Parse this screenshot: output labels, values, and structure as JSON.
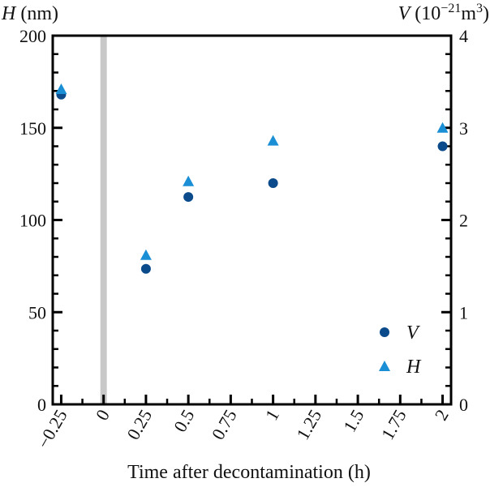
{
  "chart_data": {
    "type": "scatter",
    "xlabel": "Time after decontamination (h)",
    "ylabel_left": {
      "symbol": "H",
      "unit": "(nm)"
    },
    "ylabel_right": {
      "symbol": "V",
      "unit_prefix": "(10",
      "unit_exp": "−21",
      "unit_mid": "m",
      "unit_exp2": "3",
      "unit_suffix": ")"
    },
    "xlim": [
      -0.3,
      2.05
    ],
    "ylim_left": [
      0,
      200
    ],
    "ylim_right": [
      0,
      4
    ],
    "x_ticks_major": [
      -0.25,
      0,
      0.25,
      0.5,
      0.75,
      1,
      1.25,
      1.5,
      1.75,
      2
    ],
    "x_tick_labels": [
      "−0.25",
      "0",
      "0.25",
      "0.5",
      "0.75",
      "1",
      "1.25",
      "1.5",
      "1.75",
      "2"
    ],
    "y_left_ticks": [
      0,
      50,
      100,
      150,
      200
    ],
    "y_left_tick_labels": [
      "0",
      "50",
      "100",
      "150",
      "200"
    ],
    "y_right_ticks": [
      0,
      1,
      2,
      3,
      4
    ],
    "y_right_tick_labels": [
      "0",
      "1",
      "2",
      "3",
      "4"
    ],
    "vertical_band_x": 0,
    "series": [
      {
        "name": "V",
        "axis": "right",
        "marker": "circle",
        "color": "#0b4a8b",
        "points": [
          {
            "x": -0.25,
            "y": 3.36
          },
          {
            "x": 0.25,
            "y": 1.47
          },
          {
            "x": 0.5,
            "y": 2.25
          },
          {
            "x": 1,
            "y": 2.4
          },
          {
            "x": 2,
            "y": 2.8
          }
        ]
      },
      {
        "name": "H",
        "axis": "left",
        "marker": "triangle",
        "color": "#1a8fd6",
        "points": [
          {
            "x": -0.25,
            "y": 171
          },
          {
            "x": 0.25,
            "y": 81
          },
          {
            "x": 0.5,
            "y": 121
          },
          {
            "x": 1,
            "y": 143
          },
          {
            "x": 2,
            "y": 150
          }
        ]
      }
    ],
    "legend_position": "bottom-right",
    "band_color": "#c8c8c8"
  }
}
